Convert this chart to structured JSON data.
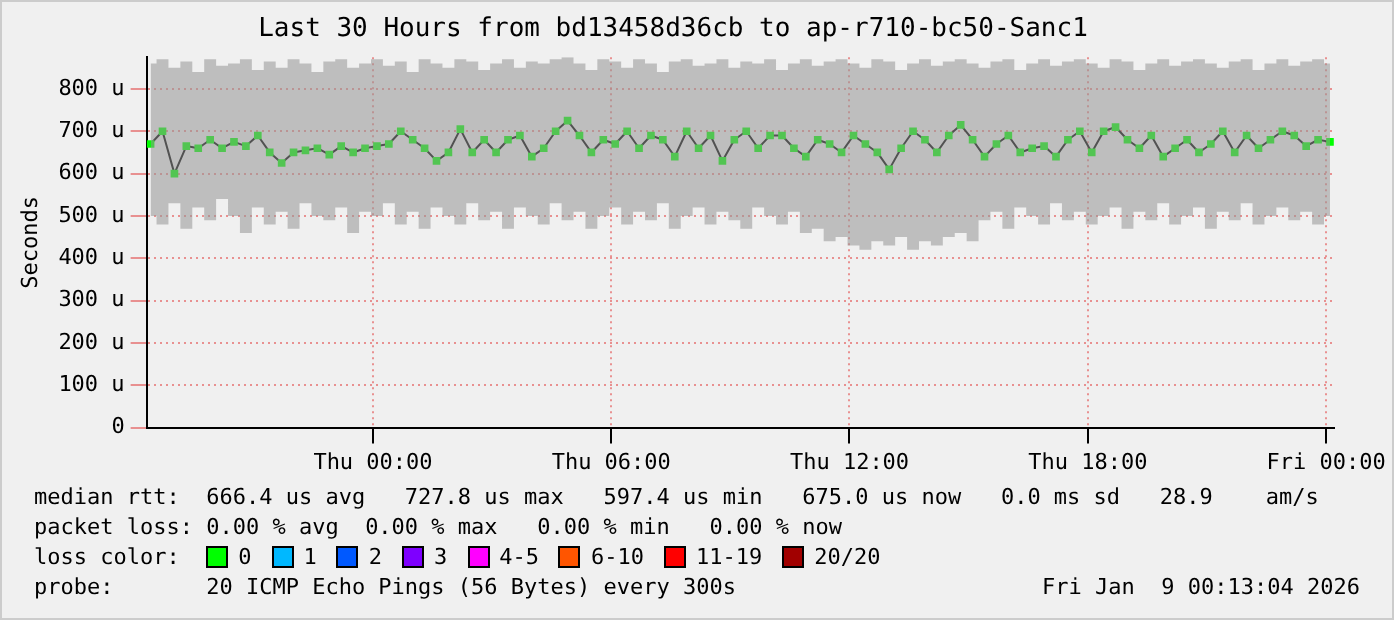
{
  "chart_data": {
    "type": "line",
    "title": "Last 30 Hours from bd13458d36cb to ap-r710-bc50-Sanc1",
    "ylabel": "Seconds",
    "x": [
      "2026-01-07T18:24",
      "2026-01-07T18:42",
      "2026-01-07T19:00",
      "2026-01-07T19:18",
      "2026-01-07T19:36",
      "2026-01-07T19:54",
      "2026-01-07T20:12",
      "2026-01-07T20:30",
      "2026-01-07T20:48",
      "2026-01-07T21:06",
      "2026-01-07T21:24",
      "2026-01-07T21:42",
      "2026-01-07T22:00",
      "2026-01-07T22:18",
      "2026-01-07T22:36",
      "2026-01-07T22:54",
      "2026-01-07T23:12",
      "2026-01-07T23:30",
      "2026-01-07T23:48",
      "2026-01-08T00:06",
      "2026-01-08T00:24",
      "2026-01-08T00:42",
      "2026-01-08T01:00",
      "2026-01-08T01:18",
      "2026-01-08T01:36",
      "2026-01-08T01:54",
      "2026-01-08T02:12",
      "2026-01-08T02:30",
      "2026-01-08T02:48",
      "2026-01-08T03:06",
      "2026-01-08T03:24",
      "2026-01-08T03:42",
      "2026-01-08T04:00",
      "2026-01-08T04:18",
      "2026-01-08T04:36",
      "2026-01-08T04:54",
      "2026-01-08T05:12",
      "2026-01-08T05:30",
      "2026-01-08T05:48",
      "2026-01-08T06:06",
      "2026-01-08T06:24",
      "2026-01-08T06:42",
      "2026-01-08T07:00",
      "2026-01-08T07:18",
      "2026-01-08T07:36",
      "2026-01-08T07:54",
      "2026-01-08T08:12",
      "2026-01-08T08:30",
      "2026-01-08T08:48",
      "2026-01-08T09:06",
      "2026-01-08T09:24",
      "2026-01-08T09:42",
      "2026-01-08T10:00",
      "2026-01-08T10:18",
      "2026-01-08T10:36",
      "2026-01-08T10:54",
      "2026-01-08T11:12",
      "2026-01-08T11:30",
      "2026-01-08T11:48",
      "2026-01-08T12:06",
      "2026-01-08T12:24",
      "2026-01-08T12:42",
      "2026-01-08T13:00",
      "2026-01-08T13:18",
      "2026-01-08T13:36",
      "2026-01-08T13:54",
      "2026-01-08T14:12",
      "2026-01-08T14:30",
      "2026-01-08T14:48",
      "2026-01-08T15:06",
      "2026-01-08T15:24",
      "2026-01-08T15:42",
      "2026-01-08T16:00",
      "2026-01-08T16:18",
      "2026-01-08T16:36",
      "2026-01-08T16:54",
      "2026-01-08T17:12",
      "2026-01-08T17:30",
      "2026-01-08T17:48",
      "2026-01-08T18:06",
      "2026-01-08T18:24",
      "2026-01-08T18:42",
      "2026-01-08T19:00",
      "2026-01-08T19:18",
      "2026-01-08T19:36",
      "2026-01-08T19:54",
      "2026-01-08T20:12",
      "2026-01-08T20:30",
      "2026-01-08T20:48",
      "2026-01-08T21:06",
      "2026-01-08T21:24",
      "2026-01-08T21:42",
      "2026-01-08T22:00",
      "2026-01-08T22:18",
      "2026-01-08T22:36",
      "2026-01-08T22:54",
      "2026-01-08T23:12",
      "2026-01-08T23:30",
      "2026-01-08T23:48",
      "2026-01-09T00:06"
    ],
    "series": [
      {
        "name": "0",
        "color": "#00ff00",
        "values": [
          670,
          700,
          600,
          665,
          660,
          680,
          660,
          675,
          665,
          690,
          650,
          625,
          650,
          655,
          660,
          645,
          665,
          650,
          660,
          665,
          670,
          700,
          680,
          660,
          630,
          650,
          705,
          650,
          680,
          650,
          680,
          690,
          640,
          660,
          700,
          725,
          690,
          650,
          680,
          670,
          700,
          660,
          690,
          680,
          640,
          700,
          660,
          690,
          630,
          680,
          700,
          660,
          690,
          690,
          660,
          640,
          680,
          670,
          650,
          690,
          670,
          650,
          610,
          660,
          700,
          680,
          650,
          690,
          715,
          680,
          640,
          670,
          690,
          650,
          660,
          665,
          640,
          680,
          700,
          650,
          700,
          710,
          680,
          660,
          690,
          640,
          660,
          680,
          650,
          670,
          700,
          650,
          690,
          660,
          680,
          700,
          690,
          665,
          680,
          675
        ],
        "lower": [
          500,
          480,
          530,
          470,
          520,
          490,
          540,
          500,
          460,
          520,
          480,
          510,
          470,
          530,
          500,
          490,
          520,
          460,
          510,
          500,
          530,
          480,
          510,
          470,
          520,
          500,
          480,
          530,
          490,
          510,
          470,
          520,
          500,
          480,
          530,
          490,
          510,
          470,
          500,
          520,
          480,
          510,
          490,
          530,
          470,
          500,
          520,
          480,
          510,
          490,
          470,
          520,
          500,
          480,
          510,
          460,
          470,
          440,
          450,
          430,
          420,
          440,
          430,
          450,
          420,
          440,
          430,
          450,
          460,
          440,
          490,
          510,
          470,
          520,
          500,
          480,
          530,
          490,
          510,
          480,
          500,
          520,
          470,
          510,
          490,
          530,
          480,
          500,
          520,
          470,
          510,
          490,
          530,
          480,
          500,
          520,
          490,
          510,
          480,
          500
        ],
        "upper": [
          860,
          870,
          850,
          865,
          840,
          870,
          855,
          860,
          870,
          845,
          865,
          850,
          870,
          860,
          840,
          865,
          870,
          850,
          860,
          870,
          855,
          865,
          840,
          870,
          860,
          850,
          870,
          865,
          845,
          860,
          870,
          850,
          865,
          860,
          870,
          875,
          860,
          845,
          870,
          865,
          850,
          870,
          860,
          840,
          865,
          870,
          855,
          860,
          870,
          850,
          865,
          860,
          870,
          845,
          860,
          870,
          855,
          865,
          870,
          860,
          850,
          870,
          865,
          845,
          860,
          870,
          855,
          865,
          870,
          860,
          850,
          865,
          870,
          845,
          860,
          870,
          855,
          865,
          870,
          860,
          850,
          870,
          865,
          845,
          860,
          870,
          855,
          865,
          870,
          860,
          850,
          865,
          870,
          845,
          860,
          870,
          855,
          865,
          870,
          860
        ]
      },
      {
        "name": "1",
        "color": "#00b8ff",
        "values": [
          null,
          null,
          null,
          null,
          null,
          null,
          null,
          null,
          null,
          null,
          null,
          null,
          null,
          null,
          null,
          null,
          null,
          null,
          null,
          null,
          null,
          null,
          null,
          null,
          null,
          null,
          null,
          null,
          null,
          null,
          null,
          null,
          null,
          null,
          null,
          null,
          null,
          null,
          null,
          null,
          null,
          null,
          null,
          null,
          null,
          null,
          null,
          null,
          null,
          null,
          null,
          null,
          null,
          null,
          null,
          null,
          null,
          null,
          null,
          null,
          null,
          null,
          null,
          null,
          null,
          null,
          null,
          null,
          null,
          null,
          null,
          null,
          null,
          null,
          null,
          null,
          null,
          null,
          null,
          null,
          null,
          null,
          null,
          null,
          null,
          null,
          null,
          null,
          null,
          null,
          null,
          null,
          null,
          null,
          null,
          null,
          null,
          null,
          null,
          null
        ]
      },
      {
        "name": "2",
        "color": "#0059ff",
        "values": [
          null,
          null,
          null,
          null,
          null,
          null,
          null,
          null,
          null,
          null,
          null,
          null,
          null,
          null,
          null,
          null,
          null,
          null,
          null,
          null,
          null,
          null,
          null,
          null,
          null,
          null,
          null,
          null,
          null,
          null,
          null,
          null,
          null,
          null,
          null,
          null,
          null,
          null,
          null,
          null,
          null,
          null,
          null,
          null,
          null,
          null,
          null,
          null,
          null,
          null,
          null,
          null,
          null,
          null,
          null,
          null,
          null,
          null,
          null,
          null,
          null,
          null,
          null,
          null,
          null,
          null,
          null,
          null,
          null,
          null,
          null,
          null,
          null,
          null,
          null,
          null,
          null,
          null,
          null,
          null,
          null,
          null,
          null,
          null,
          null,
          null,
          null,
          null,
          null,
          null,
          null,
          null,
          null,
          null,
          null,
          null,
          null,
          null,
          null,
          null
        ]
      },
      {
        "name": "3",
        "color": "#7e00ff",
        "values": [
          null,
          null,
          null,
          null,
          null,
          null,
          null,
          null,
          null,
          null,
          null,
          null,
          null,
          null,
          null,
          null,
          null,
          null,
          null,
          null,
          null,
          null,
          null,
          null,
          null,
          null,
          null,
          null,
          null,
          null,
          null,
          null,
          null,
          null,
          null,
          null,
          null,
          null,
          null,
          null,
          null,
          null,
          null,
          null,
          null,
          null,
          null,
          null,
          null,
          null,
          null,
          null,
          null,
          null,
          null,
          null,
          null,
          null,
          null,
          null,
          null,
          null,
          null,
          null,
          null,
          null,
          null,
          null,
          null,
          null,
          null,
          null,
          null,
          null,
          null,
          null,
          null,
          null,
          null,
          null,
          null,
          null,
          null,
          null,
          null,
          null,
          null,
          null,
          null,
          null,
          null,
          null,
          null,
          null,
          null,
          null,
          null,
          null,
          null,
          null
        ]
      },
      {
        "name": "4-5",
        "color": "#ff00ff",
        "values": [
          null,
          null,
          null,
          null,
          null,
          null,
          null,
          null,
          null,
          null,
          null,
          null,
          null,
          null,
          null,
          null,
          null,
          null,
          null,
          null,
          null,
          null,
          null,
          null,
          null,
          null,
          null,
          null,
          null,
          null,
          null,
          null,
          null,
          null,
          null,
          null,
          null,
          null,
          null,
          null,
          null,
          null,
          null,
          null,
          null,
          null,
          null,
          null,
          null,
          null,
          null,
          null,
          null,
          null,
          null,
          null,
          null,
          null,
          null,
          null,
          null,
          null,
          null,
          null,
          null,
          null,
          null,
          null,
          null,
          null,
          null,
          null,
          null,
          null,
          null,
          null,
          null,
          null,
          null,
          null,
          null,
          null,
          null,
          null,
          null,
          null,
          null,
          null,
          null,
          null,
          null,
          null,
          null,
          null,
          null,
          null,
          null,
          null,
          null,
          null
        ]
      },
      {
        "name": "6-10",
        "color": "#ff5500",
        "values": [
          null,
          null,
          null,
          null,
          null,
          null,
          null,
          null,
          null,
          null,
          null,
          null,
          null,
          null,
          null,
          null,
          null,
          null,
          null,
          null,
          null,
          null,
          null,
          null,
          null,
          null,
          null,
          null,
          null,
          null,
          null,
          null,
          null,
          null,
          null,
          null,
          null,
          null,
          null,
          null,
          null,
          null,
          null,
          null,
          null,
          null,
          null,
          null,
          null,
          null,
          null,
          null,
          null,
          null,
          null,
          null,
          null,
          null,
          null,
          null,
          null,
          null,
          null,
          null,
          null,
          null,
          null,
          null,
          null,
          null,
          null,
          null,
          null,
          null,
          null,
          null,
          null,
          null,
          null,
          null,
          null,
          null,
          null,
          null,
          null,
          null,
          null,
          null,
          null,
          null,
          null,
          null,
          null,
          null,
          null,
          null,
          null,
          null,
          null,
          null
        ]
      },
      {
        "name": "11-19",
        "color": "#ff0000",
        "values": [
          null,
          null,
          null,
          null,
          null,
          null,
          null,
          null,
          null,
          null,
          null,
          null,
          null,
          null,
          null,
          null,
          null,
          null,
          null,
          null,
          null,
          null,
          null,
          null,
          null,
          null,
          null,
          null,
          null,
          null,
          null,
          null,
          null,
          null,
          null,
          null,
          null,
          null,
          null,
          null,
          null,
          null,
          null,
          null,
          null,
          null,
          null,
          null,
          null,
          null,
          null,
          null,
          null,
          null,
          null,
          null,
          null,
          null,
          null,
          null,
          null,
          null,
          null,
          null,
          null,
          null,
          null,
          null,
          null,
          null,
          null,
          null,
          null,
          null,
          null,
          null,
          null,
          null,
          null,
          null,
          null,
          null,
          null,
          null,
          null,
          null,
          null,
          null,
          null,
          null,
          null,
          null,
          null,
          null,
          null,
          null,
          null,
          null,
          null,
          null
        ]
      },
      {
        "name": "20/20",
        "color": "#a10000",
        "values": [
          null,
          null,
          null,
          null,
          null,
          null,
          null,
          null,
          null,
          null,
          null,
          null,
          null,
          null,
          null,
          null,
          null,
          null,
          null,
          null,
          null,
          null,
          null,
          null,
          null,
          null,
          null,
          null,
          null,
          null,
          null,
          null,
          null,
          null,
          null,
          null,
          null,
          null,
          null,
          null,
          null,
          null,
          null,
          null,
          null,
          null,
          null,
          null,
          null,
          null,
          null,
          null,
          null,
          null,
          null,
          null,
          null,
          null,
          null,
          null,
          null,
          null,
          null,
          null,
          null,
          null,
          null,
          null,
          null,
          null,
          null,
          null,
          null,
          null,
          null,
          null,
          null,
          null,
          null,
          null,
          null,
          null,
          null,
          null,
          null,
          null,
          null,
          null,
          null,
          null,
          null,
          null,
          null,
          null,
          null,
          null,
          null,
          null,
          null,
          null
        ]
      }
    ],
    "legend": "bottom",
    "legend_title": "loss color:",
    "marker": "square",
    "xlim": [
      "2026-01-07T18:18",
      "2026-01-09T00:12"
    ],
    "xticks": [
      {
        "value": "2026-01-08T00:00",
        "label": "Thu 00:00"
      },
      {
        "value": "2026-01-08T06:00",
        "label": "Thu 06:00"
      },
      {
        "value": "2026-01-08T12:00",
        "label": "Thu 12:00"
      },
      {
        "value": "2026-01-08T18:00",
        "label": "Thu 18:00"
      },
      {
        "value": "2026-01-09T00:00",
        "label": "Fri 00:00"
      }
    ],
    "ylim": [
      0,
      875
    ],
    "yticks": [
      0,
      {
        "value": 100,
        "label": "100 u"
      },
      {
        "value": 200,
        "label": "200 u"
      },
      {
        "value": 300,
        "label": "300 u"
      },
      {
        "value": 400,
        "label": "400 u"
      },
      {
        "value": 500,
        "label": "500 u"
      },
      {
        "value": 600,
        "label": "600 u"
      },
      {
        "value": 700,
        "label": "700 u"
      },
      {
        "value": 800,
        "label": "800 u"
      }
    ],
    "grid": true,
    "annotations": [
      "median rtt:  666.4 us avg   727.8 us max   597.4 us min   675.0 us now   0.0 ms sd   28.9    am/s",
      "packet loss: 0.00 % avg  0.00 % max   0.00 % min   0.00 % now",
      "probe:       20 ICMP Echo Pings (56 Bytes) every 300s",
      "Fri Jan  9 00:13:04 2026"
    ]
  }
}
